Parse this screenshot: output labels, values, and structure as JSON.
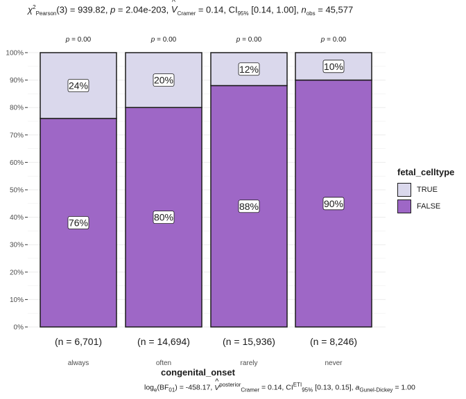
{
  "subtitle": {
    "chi": "χ",
    "chi_sup": "2",
    "chi_sub": "Pearson",
    "df": "(3) = 939.82, ",
    "p_symbol": "p",
    "p_value": " = 2.04e-203, ",
    "v_symbol": "V",
    "v_sub": "Cramer",
    "v_value": " = 0.14, CI",
    "ci_sub": "95%",
    "ci_value": " [0.14, 1.00], ",
    "n_symbol": "n",
    "n_sub": "obs",
    "n_value": " = 45,577"
  },
  "caption": {
    "log": "log",
    "log_sub": "e",
    "bf": "(BF",
    "bf_sub": "01",
    "bf_value": ") = -458.17, ",
    "v_symbol": "V",
    "v_sup": "posterior",
    "v_sub": "Cramer",
    "v_value": " = 0.14, CI",
    "ci_sup": "ETI",
    "ci_sub": "95%",
    "ci_value": " [0.13, 0.15], ",
    "a_symbol": "a",
    "a_sub": "Gunel-Dickey",
    "a_value": " = 1.00"
  },
  "colors": {
    "TRUE": "#dad8ec",
    "FALSE": "#9e67c6",
    "outline": "#1a1a1a",
    "grid": "#ebebeb"
  },
  "chart_data": {
    "type": "bar",
    "stacked": true,
    "normalized": true,
    "categories": [
      "always",
      "often",
      "rarely",
      "never"
    ],
    "series": [
      {
        "name": "FALSE",
        "values": [
          76,
          80,
          88,
          90
        ],
        "labels": [
          "76%",
          "80%",
          "88%",
          "90%"
        ]
      },
      {
        "name": "TRUE",
        "values": [
          24,
          20,
          12,
          10
        ],
        "labels": [
          "24%",
          "20%",
          "12%",
          "10%"
        ]
      }
    ],
    "counts": [
      "(n = 6,701)",
      "(n = 14,694)",
      "(n = 15,936)",
      "(n = 8,246)"
    ],
    "p_labels": [
      "p = 0.00",
      "p = 0.00",
      "p = 0.00",
      "p = 0.00"
    ],
    "xlabel": "congenital_onset",
    "ylabel": "",
    "ylim": [
      0,
      100
    ],
    "yticks": [
      "0%",
      "10%",
      "20%",
      "30%",
      "40%",
      "50%",
      "60%",
      "70%",
      "80%",
      "90%",
      "100%"
    ],
    "legend": {
      "title": "fetal_celltype",
      "entries": [
        "TRUE",
        "FALSE"
      ],
      "placement": "right"
    },
    "grid": true
  }
}
